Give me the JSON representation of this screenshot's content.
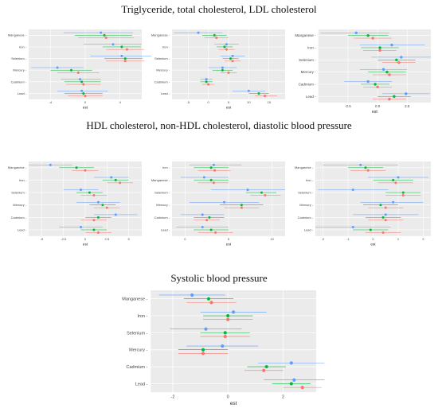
{
  "headings": {
    "top": "Triglyceride, total cholesterol, LDL cholesterol",
    "middle": "HDL cholesterol, non-HDL cholesterol, diastolic blood pressure",
    "bottom": "Systolic blood pressure"
  },
  "colors": {
    "blue": "#619CFF",
    "green": "#00BA38",
    "red": "#F8766D",
    "panel_bg": "#EBEBEB",
    "grid": "#FFFFFF"
  },
  "chart_data": [
    {
      "type": "forest",
      "group": "top",
      "xlabel": "est",
      "xlim": [
        -6.5,
        6.5
      ],
      "grid": true,
      "xticks": [
        -4,
        0,
        4
      ],
      "xticklabels": [
        "-4",
        "0",
        "4"
      ],
      "categories": [
        "Manganese",
        "Iron",
        "Selenium",
        "Mercury",
        "Cadmium",
        "Lead"
      ],
      "series": [
        {
          "color": "blue",
          "est": [
            1.8,
            3.2,
            4.2,
            -3.2,
            -0.6,
            -0.4
          ],
          "lower": [
            -2.5,
            -0.2,
            0.6,
            -6.2,
            -2.8,
            -3.2
          ],
          "upper": [
            5.5,
            6.5,
            7.6,
            -0.2,
            1.8,
            2.6
          ]
        },
        {
          "color": "green",
          "est": [
            2.2,
            4.2,
            4.6,
            -1.6,
            -0.4,
            -0.2
          ],
          "lower": [
            -1.2,
            2.0,
            2.2,
            -4.0,
            -2.4,
            -2.4
          ],
          "upper": [
            5.4,
            6.4,
            6.6,
            0.8,
            1.8,
            2.0
          ]
        },
        {
          "color": "red",
          "est": [
            2.4,
            4.8,
            4.6,
            -0.8,
            -0.2,
            0.0
          ],
          "lower": [
            -0.8,
            2.4,
            2.4,
            -3.2,
            -2.2,
            -2.0
          ],
          "upper": [
            5.6,
            6.8,
            6.8,
            1.6,
            1.8,
            2.0
          ]
        }
      ]
    },
    {
      "type": "forest",
      "group": "top",
      "xlabel": "est",
      "xlim": [
        -9,
        19
      ],
      "grid": true,
      "xticks": [
        -5,
        0,
        5,
        10,
        15
      ],
      "xticklabels": [
        "-5",
        "0",
        "5",
        "10",
        "15"
      ],
      "categories": [
        "Manganese",
        "Iron",
        "Selenium",
        "Mercury",
        "Cadmium",
        "Lead"
      ],
      "series": [
        {
          "color": "blue",
          "est": [
            -2.5,
            4.5,
            6.0,
            3.5,
            -0.5,
            10.0
          ],
          "lower": [
            -8.5,
            1.5,
            3.0,
            0.0,
            -2.0,
            6.0
          ],
          "upper": [
            3.5,
            7.5,
            9.0,
            7.0,
            1.0,
            14.0
          ]
        },
        {
          "color": "green",
          "est": [
            1.5,
            4.0,
            5.5,
            3.5,
            -0.5,
            12.5
          ],
          "lower": [
            -1.5,
            2.0,
            3.5,
            1.0,
            -2.0,
            10.0
          ],
          "upper": [
            4.5,
            6.0,
            7.5,
            6.0,
            1.0,
            15.0
          ]
        },
        {
          "color": "red",
          "est": [
            2.0,
            4.5,
            6.0,
            5.0,
            0.0,
            14.0
          ],
          "lower": [
            -1.0,
            2.5,
            4.0,
            3.0,
            -1.5,
            11.5
          ],
          "upper": [
            5.0,
            6.5,
            8.0,
            7.0,
            1.5,
            17.0
          ]
        }
      ]
    },
    {
      "type": "forest",
      "group": "top",
      "xlabel": "est",
      "xlim": [
        -5,
        4.5
      ],
      "grid": true,
      "xticks": [
        -2.5,
        0,
        2.5
      ],
      "xticklabels": [
        "-2.5",
        "0.0",
        "2.5"
      ],
      "categories": [
        "Manganese",
        "Iron",
        "Selenium",
        "Mercury",
        "Cadmium",
        "Lead"
      ],
      "series": [
        {
          "color": "blue",
          "est": [
            -1.8,
            1.2,
            2.0,
            0.5,
            -0.8,
            2.4
          ],
          "lower": [
            -4.8,
            -1.5,
            -0.5,
            -1.5,
            -2.8,
            0.4
          ],
          "upper": [
            1.0,
            4.0,
            4.5,
            2.5,
            1.2,
            4.4
          ]
        },
        {
          "color": "green",
          "est": [
            -0.8,
            0.2,
            1.6,
            0.8,
            -0.2,
            1.4
          ],
          "lower": [
            -2.5,
            -1.4,
            0.0,
            -0.8,
            -1.4,
            0.0
          ],
          "upper": [
            0.9,
            1.8,
            3.2,
            2.4,
            1.0,
            2.8
          ]
        },
        {
          "color": "red",
          "est": [
            -0.4,
            0.2,
            1.8,
            1.0,
            0.0,
            1.0
          ],
          "lower": [
            -2.0,
            -1.2,
            0.4,
            -0.4,
            -1.2,
            -0.4
          ],
          "upper": [
            1.2,
            1.6,
            3.2,
            2.4,
            1.2,
            2.4
          ]
        }
      ]
    },
    {
      "type": "forest",
      "group": "middle",
      "xlabel": "est",
      "xlim": [
        -6.5,
        6.5
      ],
      "grid": true,
      "xticks": [
        -5,
        -2.5,
        0,
        2.5,
        5
      ],
      "xticklabels": [
        "-5",
        "-2.5",
        "0",
        "2.5",
        "5"
      ],
      "categories": [
        "Manganese",
        "Iron",
        "Selenium",
        "Mercury",
        "Cadmium",
        "Lead"
      ],
      "series": [
        {
          "color": "blue",
          "est": [
            -4.0,
            3.0,
            -0.5,
            1.5,
            3.5,
            -0.5
          ],
          "lower": [
            -6.5,
            1.0,
            -2.5,
            -1.0,
            1.0,
            -3.0
          ],
          "upper": [
            -1.5,
            5.0,
            1.5,
            4.0,
            6.0,
            2.0
          ]
        },
        {
          "color": "green",
          "est": [
            -1.0,
            3.5,
            0.5,
            2.0,
            1.5,
            1.0
          ],
          "lower": [
            -3.0,
            2.0,
            -1.0,
            0.5,
            0.0,
            -0.5
          ],
          "upper": [
            1.0,
            5.0,
            2.0,
            3.5,
            3.0,
            2.5
          ]
        },
        {
          "color": "red",
          "est": [
            0.0,
            4.0,
            1.0,
            2.5,
            1.0,
            1.5
          ],
          "lower": [
            -1.5,
            2.5,
            -0.5,
            1.0,
            -0.5,
            0.0
          ],
          "upper": [
            1.5,
            5.5,
            2.5,
            4.0,
            2.5,
            3.0
          ]
        }
      ]
    },
    {
      "type": "forest",
      "group": "middle",
      "xlabel": "est",
      "xlim": [
        -1.5,
        11.5
      ],
      "grid": true,
      "xticks": [
        0,
        5,
        10
      ],
      "xticklabels": [
        "0",
        "5",
        "10"
      ],
      "categories": [
        "Iron",
        "Manganese",
        "Selenium",
        "Mercury",
        "Cadmium",
        "Lead"
      ],
      "series": [
        {
          "color": "blue",
          "est": [
            3.3,
            2.2,
            7.2,
            4.5,
            2.0,
            2.0
          ],
          "lower": [
            0.5,
            -0.5,
            3.0,
            0.5,
            -0.5,
            -1.0
          ],
          "upper": [
            6.5,
            5.0,
            11.5,
            8.5,
            4.5,
            5.0
          ]
        },
        {
          "color": "green",
          "est": [
            3.0,
            3.0,
            8.8,
            6.5,
            2.8,
            3.0
          ],
          "lower": [
            1.0,
            1.0,
            7.0,
            4.0,
            1.0,
            1.0
          ],
          "upper": [
            5.0,
            5.0,
            10.5,
            9.0,
            4.5,
            5.0
          ]
        },
        {
          "color": "red",
          "est": [
            3.4,
            3.3,
            9.2,
            6.5,
            2.5,
            3.5
          ],
          "lower": [
            1.5,
            1.5,
            7.5,
            4.5,
            1.0,
            1.5
          ],
          "upper": [
            5.2,
            5.0,
            11.0,
            8.5,
            4.0,
            5.5
          ]
        }
      ]
    },
    {
      "type": "forest",
      "group": "middle",
      "xlabel": "est",
      "xlim": [
        -2.3,
        2.3
      ],
      "grid": true,
      "xticks": [
        -2,
        -1,
        0,
        1,
        2
      ],
      "xticklabels": [
        "-2",
        "-1",
        "0",
        "1",
        "2"
      ],
      "categories": [
        "Manganese",
        "Iron",
        "Selenium",
        "Mercury",
        "Cadmium",
        "Lead"
      ],
      "series": [
        {
          "color": "blue",
          "est": [
            -0.5,
            1.0,
            -0.8,
            0.8,
            0.5,
            -0.8
          ],
          "lower": [
            -2.0,
            -0.2,
            -2.2,
            -0.5,
            -0.8,
            -2.3
          ],
          "upper": [
            1.0,
            2.2,
            0.6,
            2.0,
            1.8,
            0.7
          ]
        },
        {
          "color": "green",
          "est": [
            -0.3,
            0.8,
            1.2,
            0.3,
            0.4,
            -0.1
          ],
          "lower": [
            -1.0,
            0.0,
            0.5,
            -0.4,
            -0.3,
            -0.8
          ],
          "upper": [
            0.4,
            1.6,
            1.9,
            1.0,
            1.1,
            0.6
          ]
        },
        {
          "color": "red",
          "est": [
            -0.2,
            0.9,
            1.2,
            0.5,
            0.5,
            0.4
          ],
          "lower": [
            -0.9,
            0.2,
            0.5,
            -0.2,
            -0.2,
            -0.3
          ],
          "upper": [
            0.5,
            1.6,
            1.9,
            1.2,
            1.2,
            1.1
          ]
        }
      ]
    },
    {
      "type": "forest",
      "group": "bottom",
      "xlabel": "est",
      "xlim": [
        -2.8,
        3.2
      ],
      "grid": true,
      "xticks": [
        -2,
        0,
        2
      ],
      "xticklabels": [
        "-2",
        "0",
        "2"
      ],
      "categories": [
        "Manganese",
        "Iron",
        "Selenium",
        "Mercury",
        "Cadmium",
        "Lead"
      ],
      "series": [
        {
          "color": "blue",
          "est": [
            -1.3,
            0.2,
            -0.8,
            -0.2,
            2.3,
            2.4
          ],
          "lower": [
            -2.5,
            -1.0,
            -2.1,
            -1.5,
            1.1,
            1.3
          ],
          "upper": [
            -0.1,
            1.4,
            0.5,
            1.1,
            3.5,
            3.5
          ]
        },
        {
          "color": "green",
          "est": [
            -0.7,
            0.0,
            -0.1,
            -0.9,
            1.4,
            2.3
          ],
          "lower": [
            -1.6,
            -0.9,
            -1.0,
            -1.8,
            0.7,
            1.6
          ],
          "upper": [
            0.2,
            0.9,
            0.8,
            0.0,
            2.1,
            3.0
          ]
        },
        {
          "color": "red",
          "est": [
            -0.6,
            0.0,
            -0.1,
            -0.9,
            1.3,
            2.7
          ],
          "lower": [
            -1.5,
            -0.9,
            -1.0,
            -1.8,
            0.6,
            2.0
          ],
          "upper": [
            0.3,
            0.9,
            0.8,
            0.0,
            2.0,
            3.4
          ]
        }
      ]
    }
  ]
}
